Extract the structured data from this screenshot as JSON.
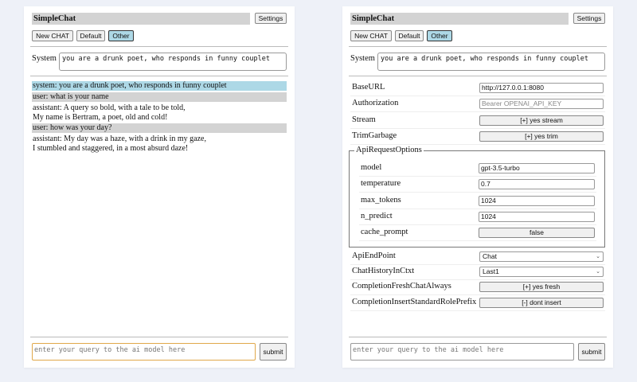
{
  "app": {
    "title": "SimpleChat",
    "settings_label": "Settings",
    "submit_label": "submit"
  },
  "toolbar": {
    "new_chat": "New CHAT",
    "default": "Default",
    "other": "Other",
    "selected": "Other"
  },
  "system": {
    "label": "System",
    "value": "you are a drunk poet, who responds in funny couplet"
  },
  "messages": [
    {
      "role": "system",
      "lines": [
        "system: you are a drunk poet, who responds in funny couplet"
      ]
    },
    {
      "role": "user",
      "lines": [
        "user: what is your name"
      ]
    },
    {
      "role": "assistant",
      "lines": [
        "assistant: A query so bold, with a tale to be told,",
        "My name is Bertram, a poet, old and cold!"
      ]
    },
    {
      "role": "user",
      "lines": [
        "user: how was your day?"
      ]
    },
    {
      "role": "assistant",
      "lines": [
        "assistant: My day was a haze, with a drink in my gaze,",
        "I stumbled and staggered, in a most absurd daze!"
      ]
    }
  ],
  "query": {
    "placeholder": "enter your query to the ai model here"
  },
  "settings": {
    "base_url": {
      "label": "BaseURL",
      "value": "http://127.0.0.1:8080"
    },
    "authorization": {
      "label": "Authorization",
      "placeholder": "Bearer OPENAI_API_KEY"
    },
    "stream": {
      "label": "Stream",
      "value": "[+] yes stream"
    },
    "trim_garbage": {
      "label": "TrimGarbage",
      "value": "[+] yes trim"
    },
    "api_request_options": {
      "legend": "ApiRequestOptions",
      "model": {
        "label": "model",
        "value": "gpt-3.5-turbo"
      },
      "temperature": {
        "label": "temperature",
        "value": "0.7"
      },
      "max_tokens": {
        "label": "max_tokens",
        "value": "1024"
      },
      "n_predict": {
        "label": "n_predict",
        "value": "1024"
      },
      "cache_prompt": {
        "label": "cache_prompt",
        "value": "false"
      }
    },
    "api_end_point": {
      "label": "ApiEndPoint",
      "value": "Chat"
    },
    "chat_history": {
      "label": "ChatHistoryInCtxt",
      "value": "Last1"
    },
    "fresh_chat": {
      "label": "CompletionFreshChatAlways",
      "value": "[+] yes fresh"
    },
    "insert_prefix": {
      "label": "CompletionInsertStandardRolePrefix",
      "value": "[-] dont insert"
    }
  },
  "colors": {
    "background": "#eef1f8",
    "selected": "#add8e6",
    "user_bg": "#d3d3d3",
    "focus": "#e0a84a"
  }
}
